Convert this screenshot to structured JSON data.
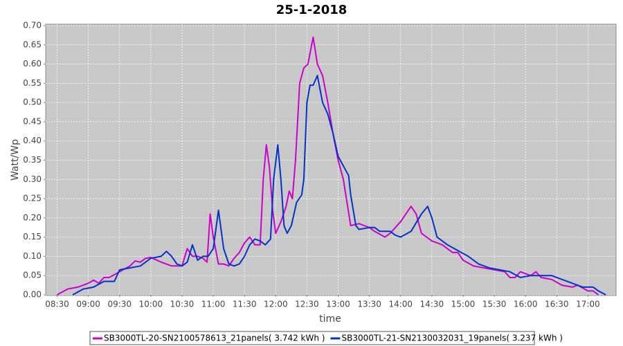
{
  "chart_data": {
    "type": "line",
    "title": "25-1-2018",
    "x_label": "time",
    "y_label": "Watt/Wp",
    "xlim": [
      "08:19",
      "17:27"
    ],
    "xticks": [
      "08:30",
      "09:00",
      "09:30",
      "10:00",
      "10:30",
      "11:00",
      "11:30",
      "12:00",
      "12:30",
      "13:00",
      "13:30",
      "14:00",
      "14:30",
      "15:00",
      "15:30",
      "16:00",
      "16:30",
      "17:00"
    ],
    "ylim": [
      0,
      0.7
    ],
    "yticks": [
      {
        "value": 0,
        "label": "0.00"
      },
      0.05,
      {
        "value": 0.1,
        "label": "0.10"
      },
      0.15,
      {
        "value": 0.2,
        "label": "0.20"
      },
      0.25,
      {
        "value": 0.3,
        "label": "0.30"
      },
      0.35,
      {
        "value": 0.4,
        "label": "0.40"
      },
      0.45,
      {
        "value": 0.5,
        "label": "0.50"
      },
      0.55,
      {
        "value": 0.6,
        "label": "0.60"
      },
      0.65,
      {
        "value": 0.7,
        "label": "0.70"
      }
    ],
    "grid": true,
    "series": [
      {
        "name": "SB3000TL-20-SN2100578613_21panels( 3.742 kWh )",
        "color": "#cc00cc",
        "x": [
          "08:30",
          "08:40",
          "08:50",
          "09:00",
          "09:05",
          "09:10",
          "09:15",
          "09:20",
          "09:30",
          "09:40",
          "09:45",
          "09:50",
          "09:55",
          "10:00",
          "10:10",
          "10:20",
          "10:30",
          "10:35",
          "10:40",
          "10:45",
          "10:50",
          "10:54",
          "10:57",
          "11:00",
          "11:05",
          "11:10",
          "11:15",
          "11:20",
          "11:25",
          "11:30",
          "11:35",
          "11:40",
          "11:45",
          "11:48",
          "11:51",
          "11:54",
          "11:57",
          "12:00",
          "12:05",
          "12:10",
          "12:13",
          "12:16",
          "12:19",
          "12:23",
          "12:27",
          "12:31",
          "12:36",
          "12:40",
          "12:45",
          "12:50",
          "12:55",
          "13:00",
          "13:05",
          "13:12",
          "13:20",
          "13:25",
          "13:30",
          "13:35",
          "13:45",
          "13:50",
          "14:00",
          "14:10",
          "14:15",
          "14:20",
          "14:30",
          "14:40",
          "14:50",
          "14:55",
          "15:00",
          "15:10",
          "15:20",
          "15:30",
          "15:40",
          "15:45",
          "15:50",
          "15:55",
          "16:00",
          "16:05",
          "16:10",
          "16:15",
          "16:25",
          "16:35",
          "16:45",
          "16:50",
          "17:00",
          "17:05",
          "17:10"
        ],
        "values": [
          0,
          0.015,
          0.02,
          0.03,
          0.038,
          0.03,
          0.045,
          0.045,
          0.06,
          0.075,
          0.088,
          0.085,
          0.095,
          0.097,
          0.085,
          0.075,
          0.075,
          0.12,
          0.1,
          0.1,
          0.095,
          0.085,
          0.21,
          0.15,
          0.08,
          0.08,
          0.075,
          0.095,
          0.11,
          0.135,
          0.15,
          0.13,
          0.13,
          0.3,
          0.39,
          0.33,
          0.22,
          0.16,
          0.19,
          0.23,
          0.27,
          0.25,
          0.35,
          0.55,
          0.59,
          0.6,
          0.67,
          0.6,
          0.57,
          0.5,
          0.42,
          0.35,
          0.3,
          0.18,
          0.185,
          0.18,
          0.175,
          0.165,
          0.15,
          0.16,
          0.19,
          0.23,
          0.21,
          0.16,
          0.14,
          0.13,
          0.11,
          0.11,
          0.09,
          0.075,
          0.07,
          0.065,
          0.06,
          0.045,
          0.045,
          0.06,
          0.055,
          0.05,
          0.06,
          0.045,
          0.04,
          0.025,
          0.02,
          0.025,
          0.01,
          0.01,
          0
        ]
      },
      {
        "name": "SB3000TL-21-SN2130032031_19panels( 3.237 kWh )",
        "color": "#0033cc",
        "x": [
          "08:45",
          "08:55",
          "09:05",
          "09:15",
          "09:25",
          "09:30",
          "09:40",
          "09:50",
          "10:00",
          "10:10",
          "10:15",
          "10:20",
          "10:25",
          "10:30",
          "10:35",
          "10:40",
          "10:45",
          "10:50",
          "10:55",
          "11:00",
          "11:05",
          "11:10",
          "11:15",
          "11:20",
          "11:25",
          "11:30",
          "11:35",
          "11:40",
          "11:45",
          "11:50",
          "11:55",
          "11:58",
          "12:02",
          "12:05",
          "12:08",
          "12:11",
          "12:15",
          "12:20",
          "12:25",
          "12:27",
          "12:30",
          "12:33",
          "12:36",
          "12:40",
          "12:45",
          "12:50",
          "12:55",
          "13:00",
          "13:10",
          "13:12",
          "13:17",
          "13:20",
          "13:30",
          "13:35",
          "13:40",
          "13:50",
          "13:55",
          "14:00",
          "14:10",
          "14:20",
          "14:26",
          "14:30",
          "14:35",
          "14:45",
          "14:55",
          "15:05",
          "15:15",
          "15:25",
          "15:35",
          "15:45",
          "15:55",
          "16:05",
          "16:15",
          "16:25",
          "16:35",
          "16:45",
          "16:55",
          "17:05",
          "17:10",
          "17:17"
        ],
        "values": [
          0,
          0.015,
          0.02,
          0.035,
          0.035,
          0.065,
          0.07,
          0.075,
          0.095,
          0.1,
          0.113,
          0.1,
          0.08,
          0.075,
          0.085,
          0.13,
          0.09,
          0.1,
          0.1,
          0.12,
          0.22,
          0.12,
          0.08,
          0.075,
          0.08,
          0.1,
          0.13,
          0.145,
          0.14,
          0.13,
          0.145,
          0.3,
          0.39,
          0.3,
          0.18,
          0.16,
          0.18,
          0.24,
          0.26,
          0.3,
          0.5,
          0.545,
          0.545,
          0.57,
          0.5,
          0.47,
          0.42,
          0.36,
          0.31,
          0.26,
          0.18,
          0.17,
          0.175,
          0.175,
          0.165,
          0.165,
          0.155,
          0.15,
          0.165,
          0.21,
          0.23,
          0.2,
          0.15,
          0.13,
          0.115,
          0.1,
          0.08,
          0.07,
          0.065,
          0.06,
          0.045,
          0.05,
          0.05,
          0.05,
          0.04,
          0.03,
          0.02,
          0.02,
          0.01,
          0
        ]
      }
    ]
  }
}
